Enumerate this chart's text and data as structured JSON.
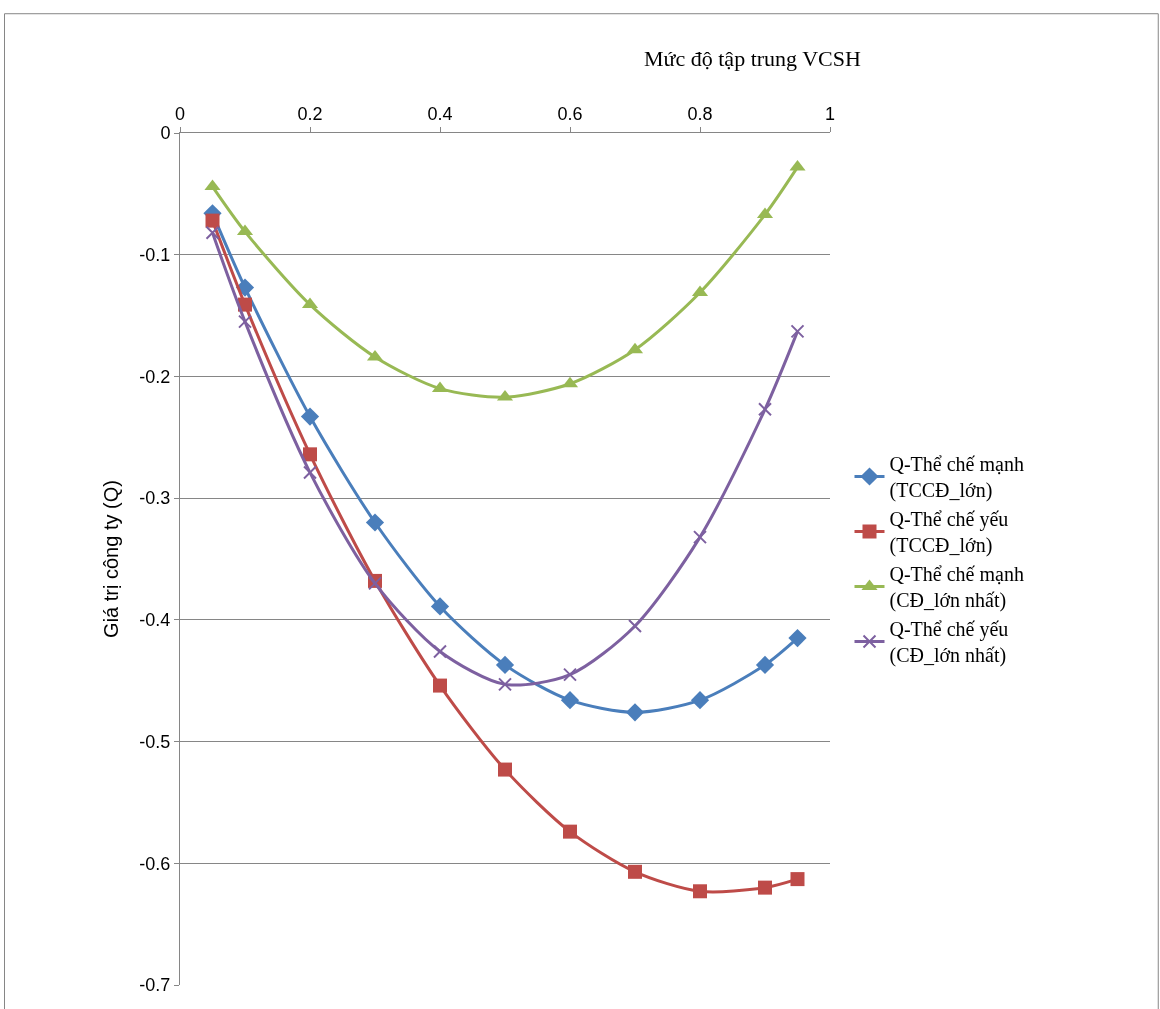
{
  "chart_data": {
    "type": "line",
    "xlabel": "Mức độ tập trung VCSH",
    "ylabel": "Giá trị công ty (Q)",
    "x": [
      0.05,
      0.1,
      0.2,
      0.3,
      0.4,
      0.5,
      0.6,
      0.7,
      0.8,
      0.9,
      0.95
    ],
    "xlim": [
      0,
      1
    ],
    "xticks": [
      0,
      0.2,
      0.4,
      0.6,
      0.8,
      1
    ],
    "ylim": [
      -0.7,
      0
    ],
    "yticks": [
      0,
      -0.1,
      -0.2,
      -0.3,
      -0.4,
      -0.5,
      -0.6,
      -0.7
    ],
    "grid": "y",
    "legend": "right",
    "series": [
      {
        "name": "Q-Thể chế mạnh\n(TCCĐ_lớn)",
        "color": "#4a7ebb",
        "marker": "diamond",
        "values": [
          -0.066,
          -0.127,
          -0.233,
          -0.32,
          -0.389,
          -0.437,
          -0.466,
          -0.476,
          -0.466,
          -0.437,
          -0.415
        ]
      },
      {
        "name": "Q-Thể chế yếu\n(TCCĐ_lớn)",
        "color": "#be4b48",
        "marker": "square",
        "values": [
          -0.072,
          -0.141,
          -0.264,
          -0.368,
          -0.454,
          -0.523,
          -0.574,
          -0.607,
          -0.623,
          -0.62,
          -0.613
        ]
      },
      {
        "name": "Q-Thể chế mạnh\n(CĐ_lớn nhất)",
        "color": "#98b954",
        "marker": "triangle",
        "values": [
          -0.044,
          -0.081,
          -0.141,
          -0.184,
          -0.21,
          -0.217,
          -0.206,
          -0.178,
          -0.131,
          -0.067,
          -0.028
        ]
      },
      {
        "name": "Q-Thể chế yếu\n(CĐ_lớn nhất)",
        "color": "#7d60a0",
        "marker": "cross",
        "values": [
          -0.082,
          -0.155,
          -0.279,
          -0.37,
          -0.426,
          -0.453,
          -0.445,
          -0.405,
          -0.332,
          -0.227,
          -0.163
        ]
      }
    ]
  }
}
